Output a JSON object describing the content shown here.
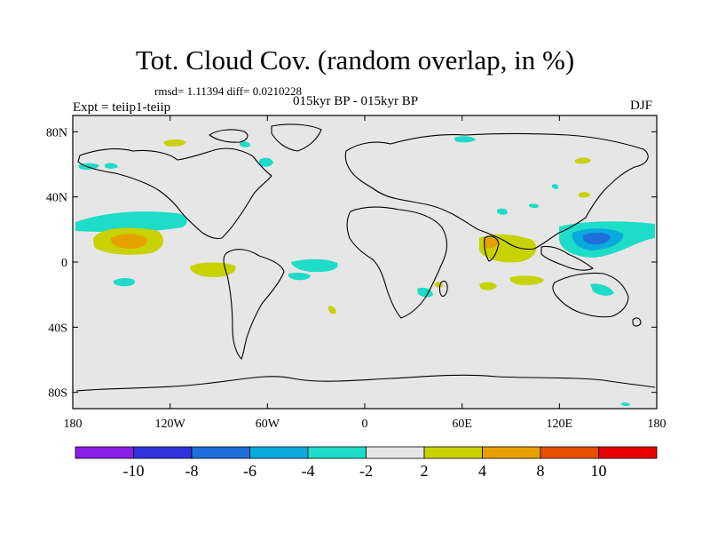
{
  "title": "Tot. Cloud Cov. (random overlap, in %)",
  "stats": "rmsd= 1.11394 diff= 0.0210228",
  "experiment": "Expt = teiip1-teiip",
  "subtitle": "015kyr BP - 015kyr BP",
  "season": "DJF",
  "map": {
    "lat_ticks": [
      "80N",
      "40N",
      "0",
      "40S",
      "80S"
    ],
    "lon_ticks": [
      "180",
      "120W",
      "60W",
      "0",
      "60E",
      "120E",
      "180"
    ],
    "lat_values": [
      80,
      40,
      0,
      -40,
      -80
    ],
    "lon_values": [
      -180,
      -120,
      -60,
      0,
      60,
      120,
      180
    ],
    "lat_range": [
      -90,
      90
    ],
    "lon_range": [
      -180,
      180
    ]
  },
  "colorbar": {
    "labels": [
      "-10",
      "-8",
      "-6",
      "-4",
      "-2",
      "2",
      "4",
      "8",
      "10"
    ],
    "colors": [
      "#8a1ee6",
      "#3232dc",
      "#1e6edc",
      "#0aaadc",
      "#1edcc8",
      "#e6e6e6",
      "#c8d200",
      "#e6a000",
      "#e65000",
      "#e60000"
    ]
  },
  "palette": {
    "neutral": "#e6e6e6",
    "light_positive": "#c8d200",
    "medium_positive": "#e6a000",
    "light_negative": "#1edcc8",
    "medium_negative": "#0aaadc",
    "strong_negative": "#1e6edc"
  }
}
